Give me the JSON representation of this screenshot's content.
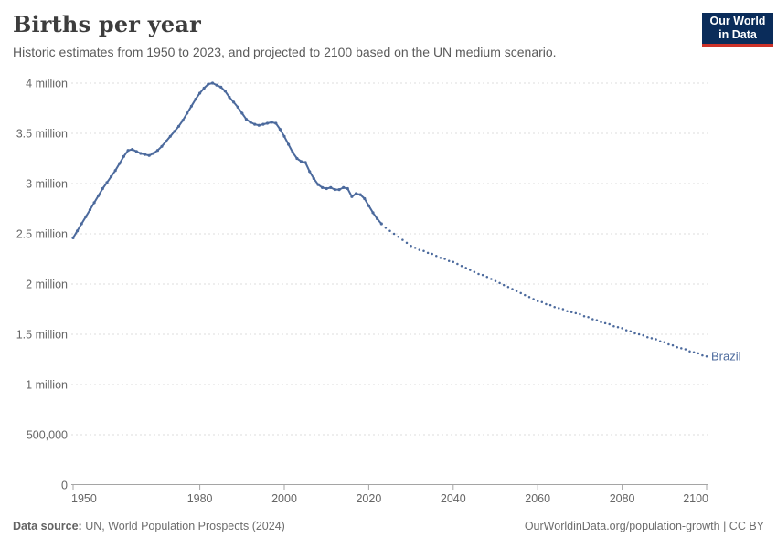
{
  "header": {
    "title": "Births per year",
    "subtitle": "Historic estimates from 1950 to 2023, and projected to 2100 based on the UN medium scenario.",
    "logo": {
      "line1": "Our World",
      "line2": "in Data",
      "bg_color": "#0a2c5a",
      "accent_color": "#cd3229"
    }
  },
  "chart_data": {
    "type": "line",
    "title": "Births per year",
    "entity": "Brazil",
    "series_label": "Brazil",
    "line_color": "#4c6a9d",
    "grid": "horizontal-dashed",
    "xlim": [
      1950,
      2100
    ],
    "ylim_millions": [
      0,
      4
    ],
    "x_ticks": [
      1950,
      1980,
      2000,
      2020,
      2040,
      2060,
      2080,
      2100
    ],
    "y_ticks": [
      {
        "value": 0,
        "label": "0"
      },
      {
        "value": 0.5,
        "label": "500,000"
      },
      {
        "value": 1,
        "label": "1 million"
      },
      {
        "value": 1.5,
        "label": "1.5 million"
      },
      {
        "value": 2,
        "label": "2 million"
      },
      {
        "value": 2.5,
        "label": "2.5 million"
      },
      {
        "value": 3,
        "label": "3 million"
      },
      {
        "value": 3.5,
        "label": "3.5 million"
      },
      {
        "value": 4,
        "label": "4 million"
      }
    ],
    "series": [
      {
        "name": "Brazil — historic estimates",
        "style": "solid",
        "start_year": 1950,
        "end_year": 2023,
        "values_millions": [
          2.46,
          2.53,
          2.6,
          2.67,
          2.74,
          2.81,
          2.88,
          2.95,
          3.01,
          3.07,
          3.13,
          3.2,
          3.27,
          3.33,
          3.34,
          3.32,
          3.3,
          3.29,
          3.28,
          3.3,
          3.33,
          3.37,
          3.42,
          3.47,
          3.52,
          3.57,
          3.63,
          3.7,
          3.77,
          3.84,
          3.9,
          3.95,
          3.99,
          4.0,
          3.98,
          3.96,
          3.92,
          3.86,
          3.81,
          3.76,
          3.7,
          3.64,
          3.61,
          3.59,
          3.58,
          3.59,
          3.6,
          3.61,
          3.6,
          3.54,
          3.47,
          3.39,
          3.31,
          3.25,
          3.22,
          3.21,
          3.12,
          3.05,
          2.99,
          2.96,
          2.95,
          2.96,
          2.94,
          2.94,
          2.96,
          2.95,
          2.87,
          2.9,
          2.89,
          2.85,
          2.78,
          2.71,
          2.65,
          2.6
        ]
      },
      {
        "name": "Brazil — UN medium scenario projection",
        "style": "dotted",
        "start_year": 2024,
        "end_year": 2100,
        "values_millions": [
          2.56,
          2.53,
          2.5,
          2.47,
          2.44,
          2.41,
          2.38,
          2.36,
          2.34,
          2.33,
          2.31,
          2.3,
          2.28,
          2.26,
          2.25,
          2.23,
          2.22,
          2.2,
          2.18,
          2.16,
          2.14,
          2.12,
          2.1,
          2.09,
          2.07,
          2.05,
          2.03,
          2.01,
          1.99,
          1.97,
          1.95,
          1.93,
          1.91,
          1.89,
          1.87,
          1.85,
          1.83,
          1.82,
          1.8,
          1.79,
          1.77,
          1.76,
          1.75,
          1.73,
          1.72,
          1.71,
          1.7,
          1.68,
          1.67,
          1.65,
          1.64,
          1.62,
          1.61,
          1.6,
          1.58,
          1.57,
          1.56,
          1.54,
          1.53,
          1.51,
          1.5,
          1.49,
          1.47,
          1.46,
          1.45,
          1.43,
          1.42,
          1.4,
          1.39,
          1.37,
          1.36,
          1.35,
          1.33,
          1.32,
          1.31,
          1.29,
          1.28
        ]
      }
    ]
  },
  "footer": {
    "source_bold": "Data source:",
    "source_text": " UN, World Population Prospects (2024)",
    "url_text": "OurWorldinData.org/population-growth | CC BY"
  }
}
